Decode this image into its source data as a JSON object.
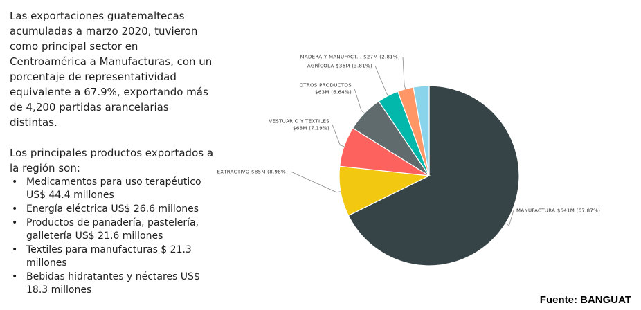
{
  "text": {
    "intro_paragraph": "Las exportaciones guatemaltecas acumuladas a marzo 2020, tuvieron como principal sector en Centroamérica a Manufacturas, con un porcentaje de representatividad equivalente a 67.9%, exportando más de 4,200 partidas arancelarias distintas.",
    "products_intro": "Los principales productos exportados a la región son:",
    "bullet_glyph": "•",
    "products": [
      "Medicamentos para uso terapéutico US$ 44.4 millones",
      "Energía eléctrica US$ 26.6 millones",
      "Productos de panadería, pastelería, galletería US$ 21.6 millones",
      "Textiles para manufacturas $ 21.3 millones",
      "Bebidas hidratantes y néctares US$ 18.3 millones"
    ],
    "source": "Fuente: BANGUAT"
  },
  "chart_data": {
    "type": "pie",
    "title": "",
    "start": "12 o'clock, clockwise",
    "slices": [
      {
        "name": "MANUFACTURA",
        "value": 641,
        "percent": 67.87,
        "label": "MANUFACTURA $641M (67.87%)",
        "color": "#374447"
      },
      {
        "name": "EXTRACTIVO",
        "value": 85,
        "percent": 8.98,
        "label": "EXTRACTIVO $85M (8.98%)",
        "color": "#F2C811"
      },
      {
        "name": "VESTUARIO Y TEXTILES",
        "value": 68,
        "percent": 7.19,
        "label_lines": [
          "VESTUARIO Y TEXTILES",
          "$68M (7.19%)"
        ],
        "color": "#FD625E"
      },
      {
        "name": "OTROS PRODUCTOS",
        "value": 63,
        "percent": 6.64,
        "label_lines": [
          "OTROS PRODUCTOS",
          "$63M (6.64%)"
        ],
        "color": "#5F6B6D"
      },
      {
        "name": "AGRÍCOLA",
        "value": 36,
        "percent": 3.81,
        "label": "AGRÍCOLA $36M (3.81%)",
        "color": "#01B8AA"
      },
      {
        "name": "MADERA Y MANUFACT...",
        "value": 27,
        "percent": 2.81,
        "label": "MADERA Y MANUFACT... $27M (2.81%)",
        "color": "#FE9666"
      },
      {
        "name": "OTHER",
        "value": 26.7,
        "percent": 2.7,
        "color": "#8AD4EB"
      }
    ]
  }
}
